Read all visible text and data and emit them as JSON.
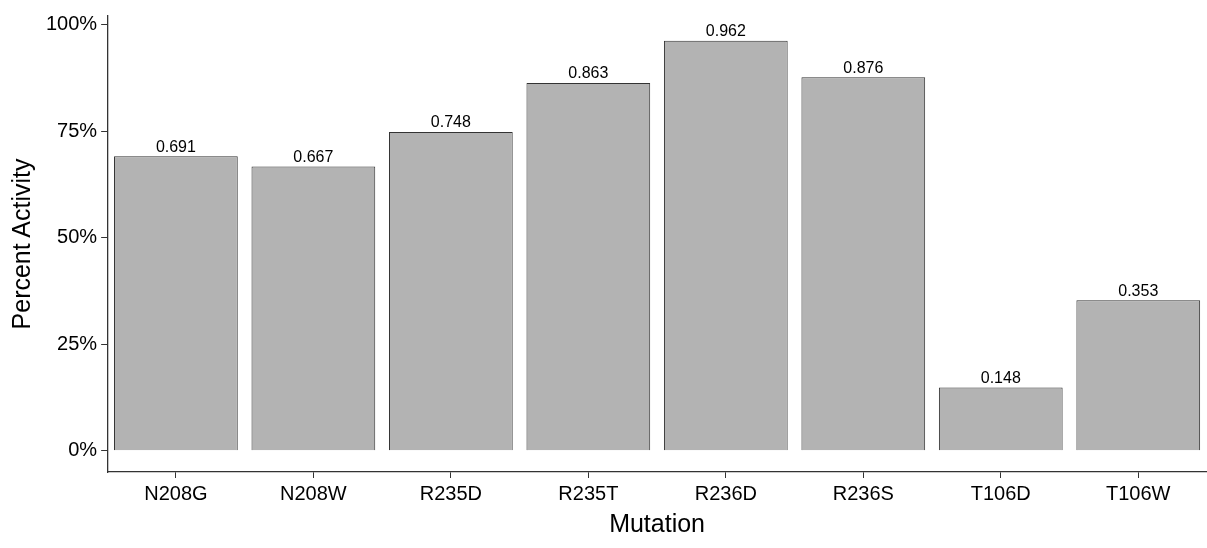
{
  "chart_data": {
    "type": "bar",
    "xlabel": "Mutation",
    "ylabel": "Percent Activity",
    "categories": [
      "N208G",
      "N208W",
      "R235D",
      "R235T",
      "R236D",
      "R236S",
      "T106D",
      "T106W"
    ],
    "values": [
      0.691,
      0.667,
      0.748,
      0.863,
      0.962,
      0.876,
      0.148,
      0.353
    ],
    "color": "#b3b3b3",
    "ylim": [
      -0.05,
      1.02
    ],
    "yticks": [
      {
        "value": 0,
        "label": "0%"
      },
      {
        "value": 0.25,
        "label": "25%"
      },
      {
        "value": 0.5,
        "label": "50%"
      },
      {
        "value": 0.75,
        "label": "75%"
      },
      {
        "value": 1,
        "label": "100%"
      }
    ],
    "data_labels": true,
    "grid": false,
    "legend": false
  }
}
